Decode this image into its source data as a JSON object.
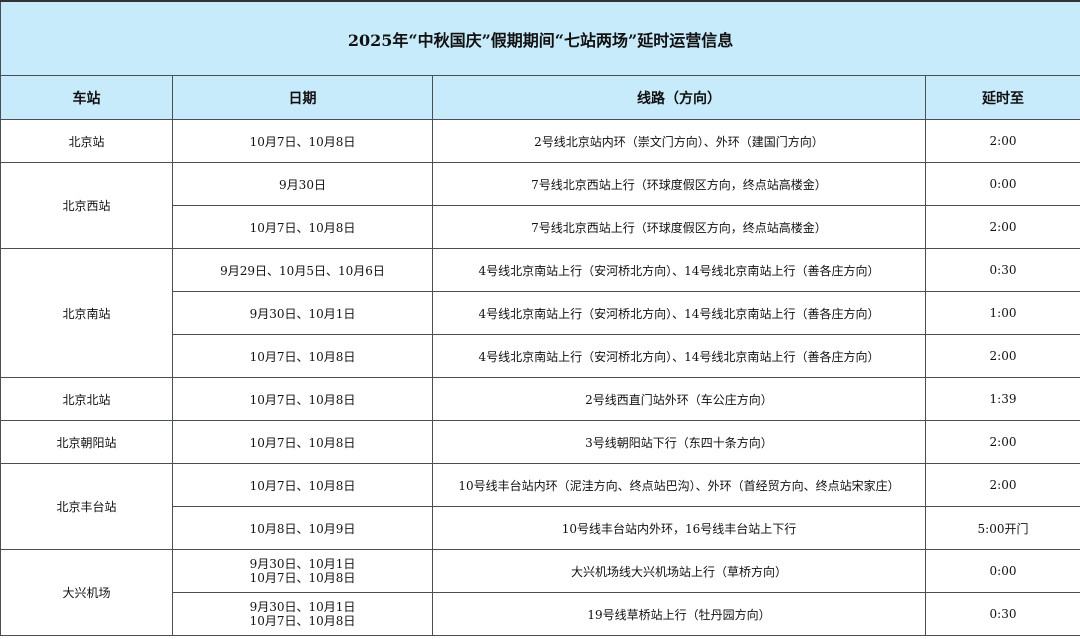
{
  "title": "2025年“中秋国庆”假期期间“七站两场”延时运营信息",
  "headers": [
    "车站",
    "日期",
    "线路（方向）",
    "延时至"
  ],
  "colors": {
    "header_bg": "#c8ebfb",
    "border": "#4a4f57"
  },
  "groups": [
    {
      "station": "北京站",
      "rows": [
        {
          "dates": [
            "10月7日、10月8日"
          ],
          "line": "2号线北京站内环（崇文门方向）、外环（建国门方向）",
          "until": "2:00"
        }
      ]
    },
    {
      "station": "北京西站",
      "rows": [
        {
          "dates": [
            "9月30日"
          ],
          "line": "7号线北京西站上行（环球度假区方向，终点站高楼金）",
          "until": "0:00"
        },
        {
          "dates": [
            "10月7日、10月8日"
          ],
          "line": "7号线北京西站上行（环球度假区方向，终点站高楼金）",
          "until": "2:00"
        }
      ]
    },
    {
      "station": "北京南站",
      "rows": [
        {
          "dates": [
            "9月29日、10月5日、10月6日"
          ],
          "line": "4号线北京南站上行（安河桥北方向）、14号线北京南站上行（善各庄方向）",
          "until": "0:30"
        },
        {
          "dates": [
            "9月30日、10月1日"
          ],
          "line": "4号线北京南站上行（安河桥北方向）、14号线北京南站上行（善各庄方向）",
          "until": "1:00"
        },
        {
          "dates": [
            "10月7日、10月8日"
          ],
          "line": "4号线北京南站上行（安河桥北方向）、14号线北京南站上行（善各庄方向）",
          "until": "2:00"
        }
      ]
    },
    {
      "station": "北京北站",
      "rows": [
        {
          "dates": [
            "10月7日、10月8日"
          ],
          "line": "2号线西直门站外环（车公庄方向）",
          "until": "1:39"
        }
      ]
    },
    {
      "station": "北京朝阳站",
      "rows": [
        {
          "dates": [
            "10月7日、10月8日"
          ],
          "line": "3号线朝阳站下行（东四十条方向）",
          "until": "2:00"
        }
      ]
    },
    {
      "station": "北京丰台站",
      "rows": [
        {
          "dates": [
            "10月7日、10月8日"
          ],
          "line": "10号线丰台站内环（泥洼方向、终点站巴沟）、外环（首经贸方向、终点站宋家庄）",
          "until": "2:00"
        },
        {
          "dates": [
            "10月8日、10月9日"
          ],
          "line": "10号线丰台站内外环，16号线丰台站上下行",
          "until": "5:00开门"
        }
      ]
    },
    {
      "station": "大兴机场",
      "rows": [
        {
          "dates": [
            "9月30日、10月1日",
            "10月7日、10月8日"
          ],
          "line": "大兴机场线大兴机场站上行（草桥方向）",
          "until": "0:00"
        },
        {
          "dates": [
            "9月30日、10月1日",
            "10月7日、10月8日"
          ],
          "line": "19号线草桥站上行（牡丹园方向）",
          "until": "0:30"
        }
      ]
    }
  ]
}
